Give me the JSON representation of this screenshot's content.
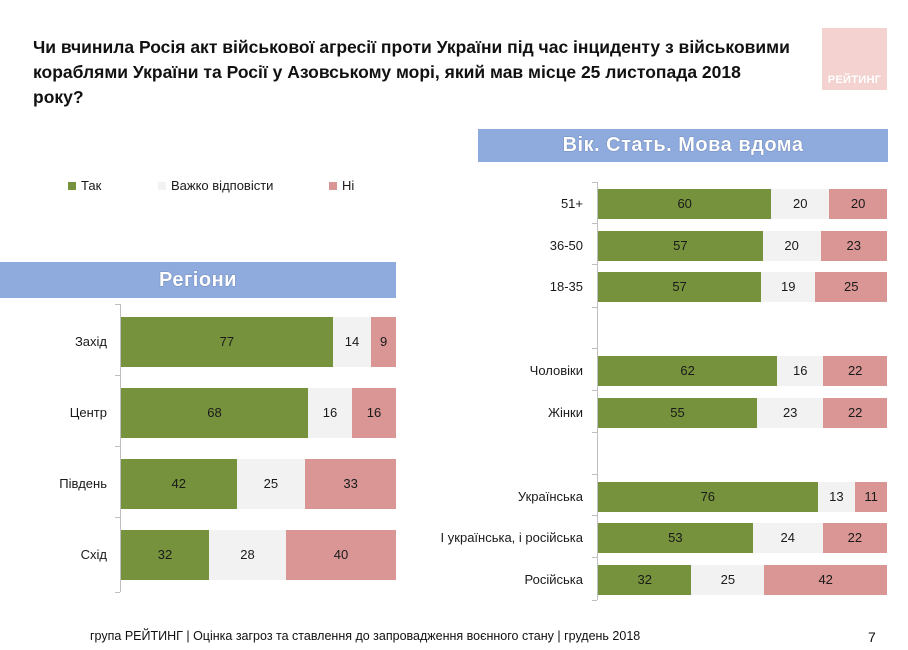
{
  "title": "Чи вчинила Росія акт військової агресії проти України під час інциденту з військовими кораблями України та Росії у Азовському морі, який мав місце 25 листопада 2018 року?",
  "logo_text": "РЕЙТИНГ",
  "footer": "група РЕЙТИНГ | Оцінка загроз та ставлення до запровадження воєнного стану | грудень 2018",
  "page_number": "7",
  "colors": {
    "yes": "#76923c",
    "hard": "#f2f2f2",
    "no": "#d99694",
    "banner": "#8faadc"
  },
  "legend": [
    {
      "label": "Так",
      "color": "#76923c"
    },
    {
      "label": "Важко відповісти",
      "color": "#f2f2f2"
    },
    {
      "label": "Ні",
      "color": "#d99694"
    }
  ],
  "chart_data": [
    {
      "type": "bar",
      "stacked": true,
      "orientation": "horizontal",
      "title": "Регіони",
      "categories": [
        "Захід",
        "Центр",
        "Південь",
        "Схід"
      ],
      "series": [
        {
          "name": "Так",
          "values": [
            77,
            68,
            42,
            32
          ]
        },
        {
          "name": "Важко відповісти",
          "values": [
            14,
            16,
            25,
            28
          ]
        },
        {
          "name": "Ні",
          "values": [
            9,
            16,
            33,
            40
          ]
        }
      ],
      "xlim": [
        0,
        100
      ]
    },
    {
      "type": "bar",
      "stacked": true,
      "orientation": "horizontal",
      "title": "Вік. Стать. Мова вдома",
      "categories": [
        "51+",
        "36-50",
        "18-35",
        "Чоловіки",
        "Жінки",
        "Українська",
        "І українська, і російська",
        "Російська"
      ],
      "series": [
        {
          "name": "Так",
          "values": [
            60,
            57,
            57,
            62,
            55,
            76,
            53,
            32
          ]
        },
        {
          "name": "Важко відповісти",
          "values": [
            20,
            20,
            19,
            16,
            23,
            13,
            24,
            25
          ]
        },
        {
          "name": "Ні",
          "values": [
            20,
            23,
            25,
            22,
            22,
            11,
            22,
            42
          ]
        }
      ],
      "xlim": [
        0,
        100
      ]
    }
  ]
}
